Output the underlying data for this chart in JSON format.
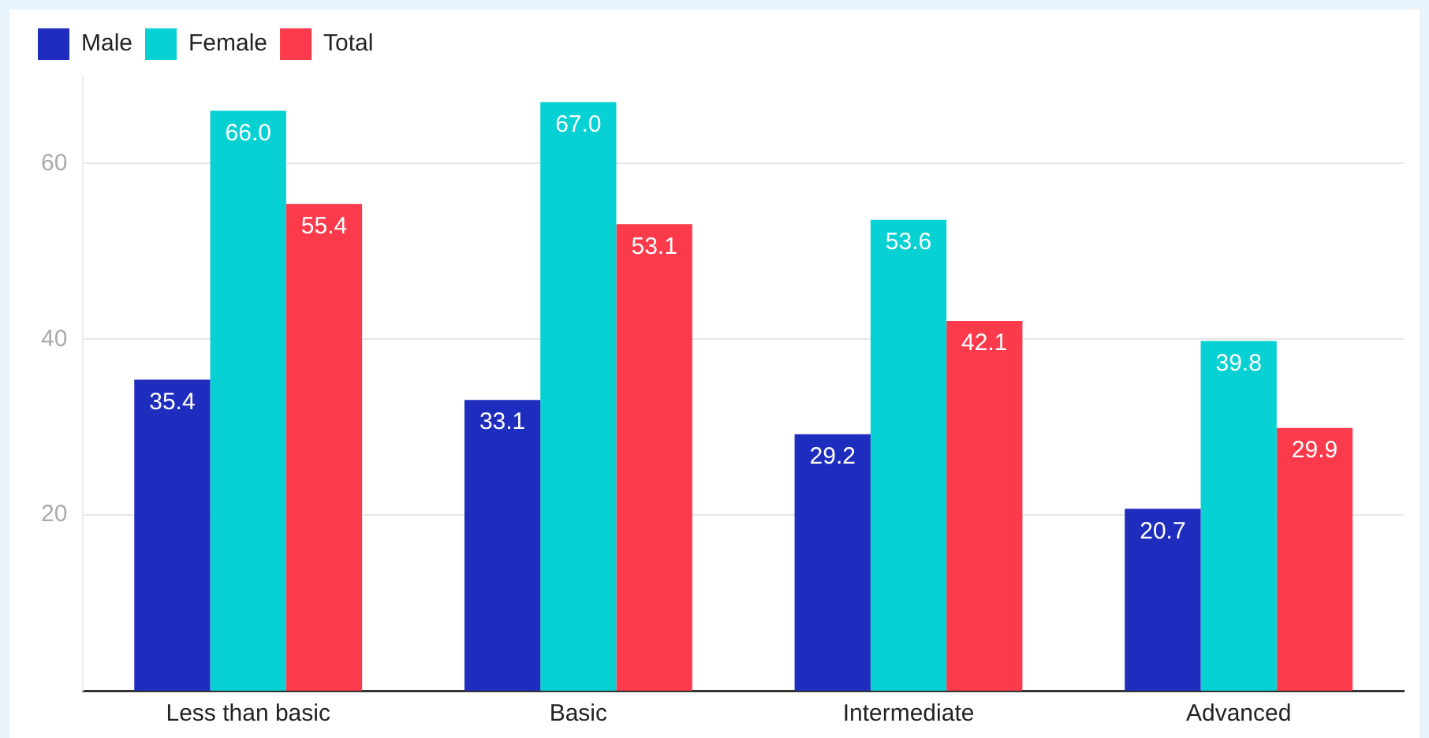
{
  "chart_data": {
    "type": "bar",
    "categories": [
      "Less than basic",
      "Basic",
      "Intermediate",
      "Advanced"
    ],
    "series": [
      {
        "name": "Male",
        "color": "#1f2dbf",
        "values": [
          35.4,
          33.1,
          29.2,
          20.7
        ]
      },
      {
        "name": "Female",
        "color": "#07d1d3",
        "values": [
          66.0,
          67.0,
          53.6,
          39.8
        ]
      },
      {
        "name": "Total",
        "color": "#fb3a4b",
        "values": [
          55.4,
          53.1,
          42.1,
          29.9
        ]
      }
    ],
    "value_labels": [
      [
        "35.4",
        "33.1",
        "29.2",
        "20.7"
      ],
      [
        "66.0",
        "67.0",
        "53.6",
        "39.8"
      ],
      [
        "55.4",
        "53.1",
        "42.1",
        "29.9"
      ]
    ],
    "ylim": [
      0,
      70
    ],
    "yticks": [
      20,
      40,
      60
    ],
    "grid": "y",
    "legend": "top left"
  }
}
